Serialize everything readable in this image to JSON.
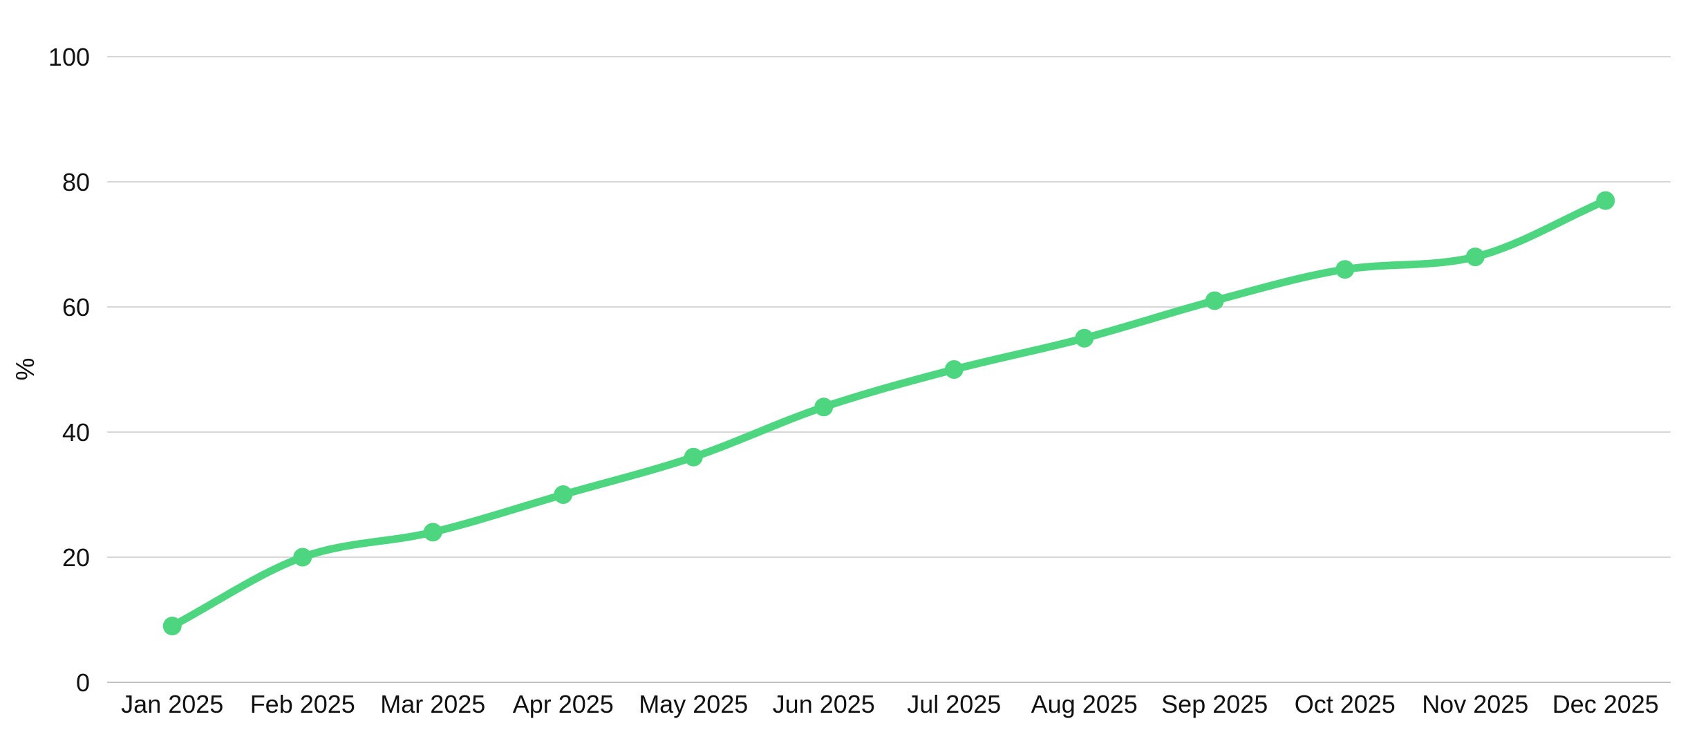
{
  "page": {
    "background": "#ffffff"
  },
  "chart_data": {
    "type": "line",
    "title": "",
    "xlabel": "",
    "ylabel": "%",
    "categories": [
      "Jan 2025",
      "Feb 2025",
      "Mar 2025",
      "Apr 2025",
      "May 2025",
      "Jun 2025",
      "Jul 2025",
      "Aug 2025",
      "Sep 2025",
      "Oct 2025",
      "Nov 2025",
      "Dec 2025"
    ],
    "series": [
      {
        "name": "percent",
        "values": [
          9,
          20,
          24,
          30,
          36,
          44,
          50,
          55,
          61,
          66,
          68,
          77
        ]
      }
    ],
    "ylim": [
      0,
      100
    ],
    "yticks": [
      0,
      20,
      40,
      60,
      80,
      100
    ],
    "grid": "horizontal-only",
    "legend": "none",
    "marker": "filled-circle",
    "smoothing": "monotone",
    "line_color": "#4ed57f",
    "grid_color": "#d7d7d7",
    "axis_line_color": "#c2c2c2",
    "text_color": "#111111"
  }
}
